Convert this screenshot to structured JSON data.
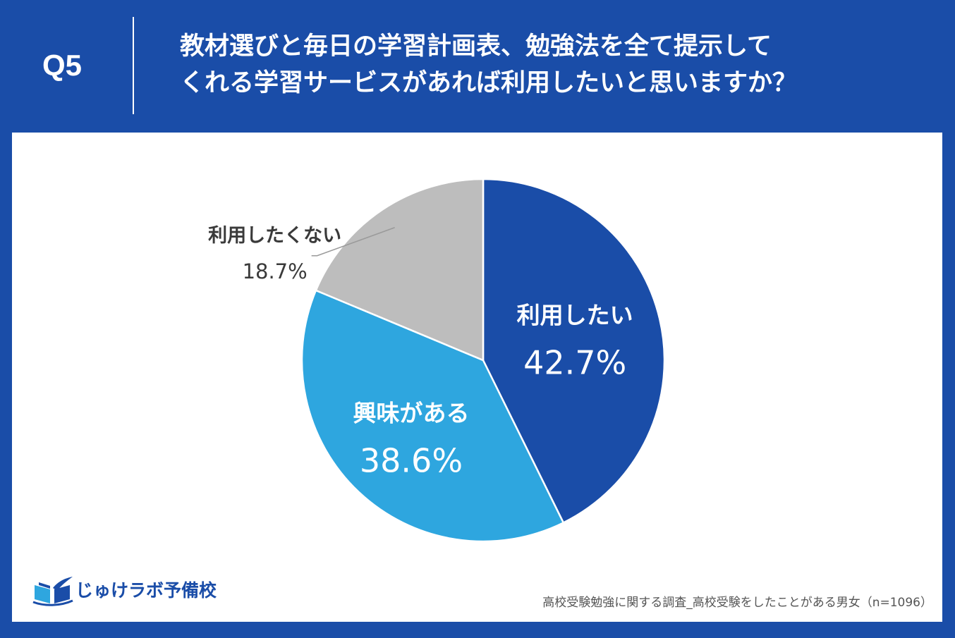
{
  "header": {
    "q_number": "Q5",
    "question_line1": "教材選びと毎日の学習計画表、勉強法を全て提示して",
    "question_line2": "くれる学習サービスがあれば利用したいと思いますか？"
  },
  "colors": {
    "background": "#1a4da8",
    "panel": "#ffffff",
    "slice_1": "#1a4da8",
    "slice_2": "#2ea6df",
    "slice_3": "#bdbdbd",
    "leader_line": "#9a9a9a"
  },
  "chart_data": {
    "type": "pie",
    "start_angle_deg": 0,
    "direction": "clockwise",
    "slices": [
      {
        "label": "利用したい",
        "value": 42.7,
        "value_label": "42.7%",
        "color": "#1a4da8",
        "label_color": "#ffffff",
        "label_inside": true
      },
      {
        "label": "興味がある",
        "value": 38.6,
        "value_label": "38.6%",
        "color": "#2ea6df",
        "label_color": "#ffffff",
        "label_inside": true
      },
      {
        "label": "利用したくない",
        "value": 18.7,
        "value_label": "18.7%",
        "color": "#bdbdbd",
        "label_color": "#3a3a3a",
        "label_inside": false
      }
    ]
  },
  "logo": {
    "icon": "open-book-icon",
    "text": "じゅけラボ予備校"
  },
  "footer": {
    "source": "高校受験勉強に関する調査_高校受験をしたことがある男女（n=1096）"
  }
}
